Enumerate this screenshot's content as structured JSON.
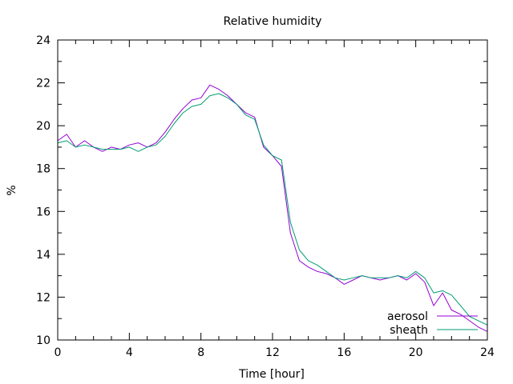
{
  "chart_data": {
    "type": "line",
    "title": "Relative humidity",
    "xlabel": "Time [hour]",
    "ylabel": "%",
    "xlim": [
      0,
      24
    ],
    "ylim": [
      10,
      24
    ],
    "xticks": [
      "0",
      "4",
      "8",
      "12",
      "16",
      "20",
      "24"
    ],
    "yticks": [
      "10",
      "12",
      "14",
      "16",
      "18",
      "20",
      "22",
      "24"
    ],
    "grid": false,
    "legend_position": "bottom-right",
    "series": [
      {
        "name": "aerosol",
        "color": "#9400d3",
        "x": [
          0,
          0.5,
          1,
          1.5,
          2,
          2.5,
          3,
          3.5,
          4,
          4.5,
          5,
          5.5,
          6,
          6.5,
          7,
          7.5,
          8,
          8.5,
          9,
          9.5,
          10,
          10.5,
          11,
          11.5,
          12,
          12.5,
          13,
          13.5,
          14,
          14.5,
          15,
          15.5,
          16,
          16.5,
          17,
          17.5,
          18,
          18.5,
          19,
          19.5,
          20,
          20.5,
          21,
          21.5,
          22,
          22.5,
          23,
          23.5,
          24
        ],
        "values": [
          19.3,
          19.6,
          19.0,
          19.3,
          19.0,
          18.8,
          19.0,
          18.9,
          19.1,
          19.2,
          19.0,
          19.2,
          19.7,
          20.3,
          20.8,
          21.2,
          21.3,
          21.9,
          21.7,
          21.4,
          21.0,
          20.6,
          20.4,
          19.0,
          18.6,
          18.1,
          15.0,
          13.7,
          13.4,
          13.2,
          13.1,
          12.9,
          12.6,
          12.8,
          13.0,
          12.9,
          12.8,
          12.9,
          13.0,
          12.8,
          13.1,
          12.7,
          11.6,
          12.2,
          11.4,
          11.2,
          10.9,
          10.6,
          10.4
        ]
      },
      {
        "name": "sheath",
        "color": "#009e73",
        "x": [
          0,
          0.5,
          1,
          1.5,
          2,
          2.5,
          3,
          3.5,
          4,
          4.5,
          5,
          5.5,
          6,
          6.5,
          7,
          7.5,
          8,
          8.5,
          9,
          9.5,
          10,
          10.5,
          11,
          11.5,
          12,
          12.5,
          13,
          13.5,
          14,
          14.5,
          15,
          15.5,
          16,
          16.5,
          17,
          17.5,
          18,
          18.5,
          19,
          19.5,
          20,
          20.5,
          21,
          21.5,
          22,
          22.5,
          23,
          23.5,
          24
        ],
        "values": [
          19.2,
          19.3,
          19.0,
          19.1,
          19.0,
          18.9,
          18.9,
          18.9,
          19.0,
          18.8,
          19.0,
          19.1,
          19.5,
          20.1,
          20.6,
          20.9,
          21.0,
          21.4,
          21.5,
          21.3,
          21.0,
          20.5,
          20.3,
          19.1,
          18.6,
          18.4,
          15.5,
          14.2,
          13.7,
          13.5,
          13.2,
          12.9,
          12.8,
          12.9,
          13.0,
          12.9,
          12.9,
          12.9,
          13.0,
          12.9,
          13.2,
          12.9,
          12.2,
          12.3,
          12.1,
          11.6,
          11.1,
          10.9,
          10.7
        ]
      }
    ]
  }
}
